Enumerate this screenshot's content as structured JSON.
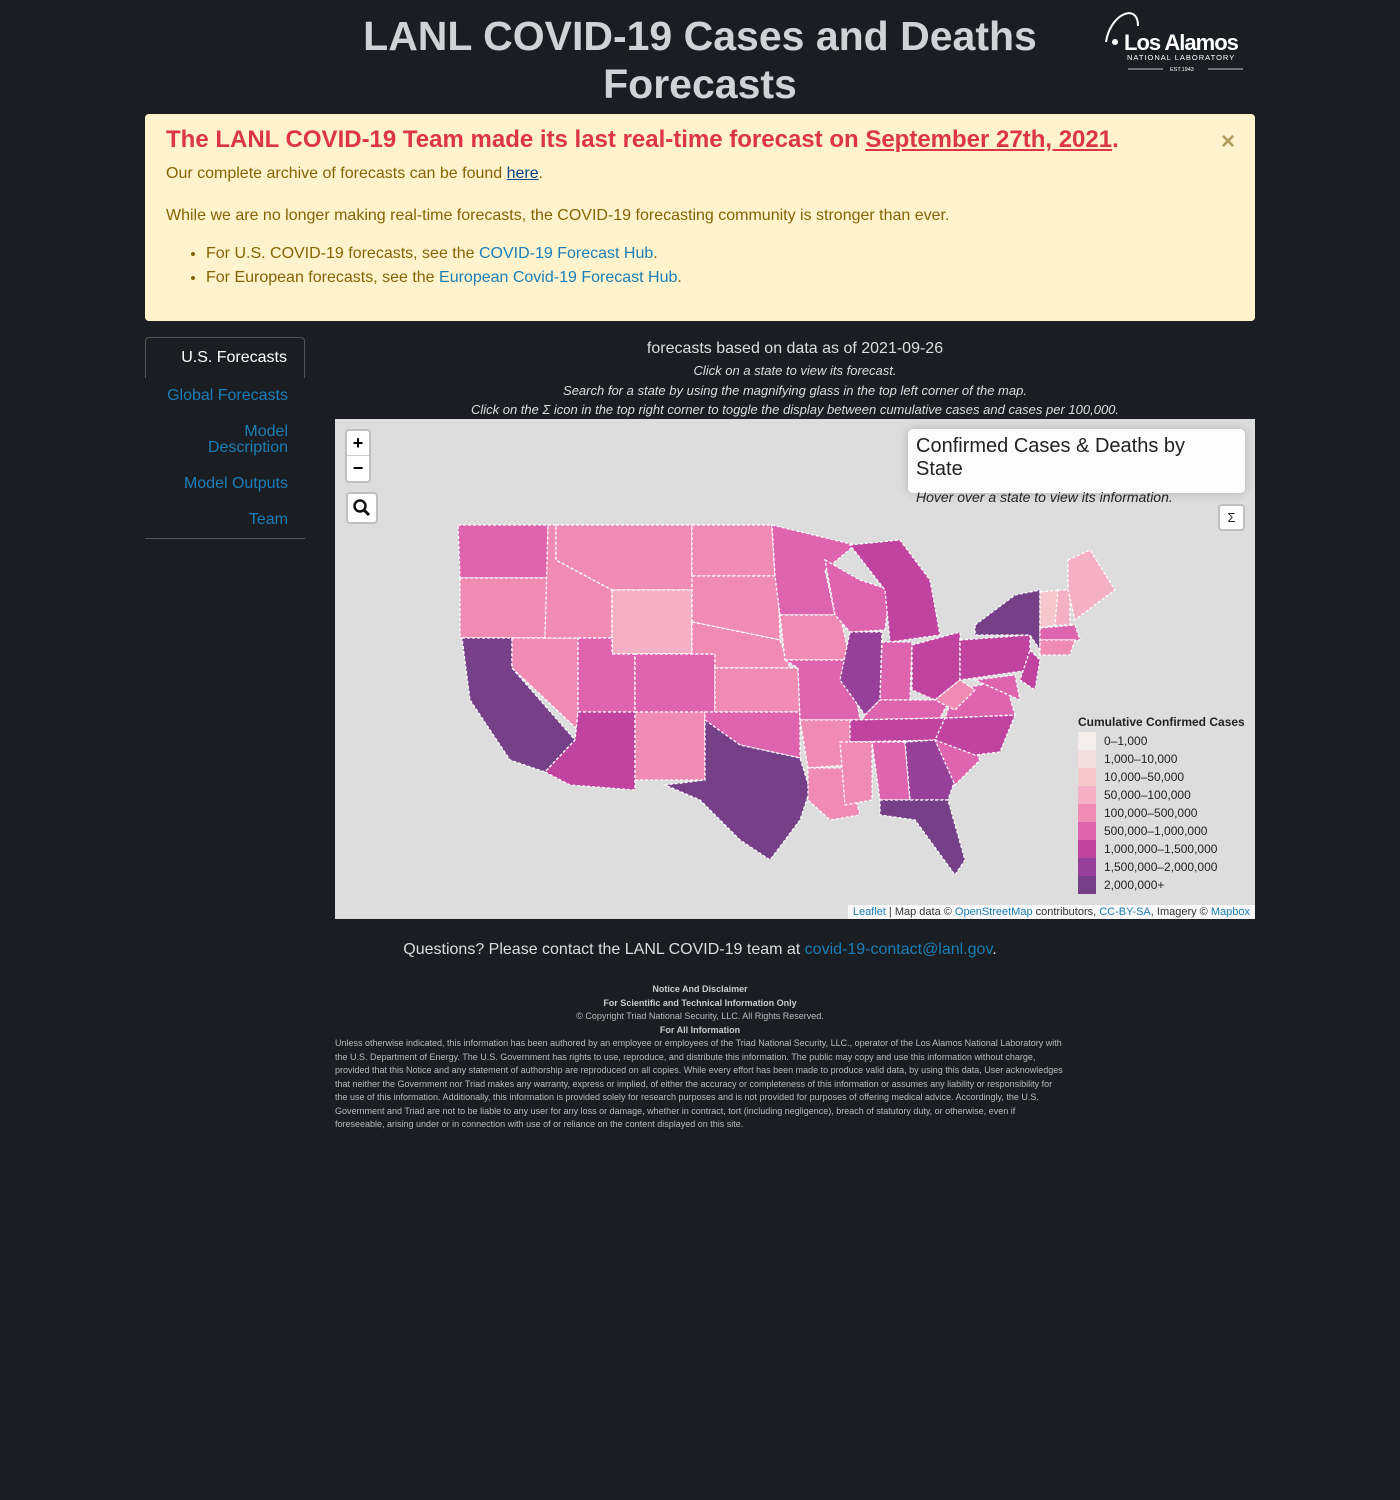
{
  "header": {
    "title": "LANL COVID-19 Cases and Deaths Forecasts",
    "logo_text": "Los Alamos",
    "logo_sub": "NATIONAL LABORATORY",
    "logo_est": "EST.1943"
  },
  "alert": {
    "heading_pre": "The LANL COVID-19 Team made its last real-time forecast on ",
    "heading_date": "September 27th, 2021",
    "heading_post": ".",
    "archive_pre": "Our complete archive of forecasts can be found ",
    "archive_link": "here",
    "archive_post": ".",
    "community": "While we are no longer making real-time forecasts, the COVID-19 forecasting community is stronger than ever.",
    "items": [
      {
        "pre": "For U.S. COVID-19 forecasts, see the ",
        "link": "COVID-19 Forecast Hub",
        "post": "."
      },
      {
        "pre": "For European forecasts, see the ",
        "link": "European Covid-19 Forecast Hub",
        "post": "."
      }
    ],
    "close": "×"
  },
  "nav": {
    "items": [
      {
        "label": "U.S. Forecasts"
      },
      {
        "label": "Global Forecasts"
      },
      {
        "label": "Model Description"
      },
      {
        "label": "Model Outputs"
      },
      {
        "label": "Team"
      }
    ]
  },
  "info": {
    "asof": "forecasts based on data as of 2021-09-26",
    "lines": [
      "Click on a state to view its forecast.",
      "Search for a state by using the magnifying glass in the top left corner of the map.",
      "Click on the Σ icon in the top right corner to toggle the display between cumulative cases and cases per 100,000."
    ]
  },
  "map": {
    "zoom_in": "+",
    "zoom_out": "−",
    "sigma": "Σ",
    "infobox_title": "Confirmed Cases & Deaths by State",
    "infobox_hint": "Hover over a state to view its information.",
    "legend": {
      "title": "Cumulative Confirmed Cases",
      "bins": [
        {
          "label": "0–1,000",
          "color": "#f4efec"
        },
        {
          "label": "1,000–10,000",
          "color": "#f4dfe0"
        },
        {
          "label": "10,000–50,000",
          "color": "#f5c9cc"
        },
        {
          "label": "50,000–100,000",
          "color": "#f4b0c4"
        },
        {
          "label": "100,000–500,000",
          "color": "#f08cb4"
        },
        {
          "label": "500,000–1,000,000",
          "color": "#de64b0"
        },
        {
          "label": "1,000,000–1,500,000",
          "color": "#c043a0"
        },
        {
          "label": "1,500,000–2,000,000",
          "color": "#974099"
        },
        {
          "label": "2,000,000+",
          "color": "#764089"
        }
      ]
    },
    "attribution": {
      "leaflet": "Leaflet",
      "mid1": " | Map data © ",
      "osm": "OpenStreetMap",
      "mid2": " contributors, ",
      "ccbysa": "CC-BY-SA",
      "mid3": ", Imagery © ",
      "mapbox": "Mapbox"
    }
  },
  "contact": {
    "pre": "Questions? Please contact the LANL COVID-19 team at ",
    "email": "covid-19-contact@lanl.gov",
    "post": "."
  },
  "disclaimer": {
    "h1": "Notice And Disclaimer",
    "h2": "For Scientific and Technical Information Only",
    "copyright": "© Copyright Triad National Security, LLC. All Rights Reserved.",
    "h3": "For All Information",
    "body": "Unless otherwise indicated, this information has been authored by an employee or employees of the Triad National Security, LLC., operator of the Los Alamos National Laboratory with the U.S. Department of Energy. The U.S. Government has rights to use, reproduce, and distribute this information. The public may copy and use this information without charge, provided that this Notice and any statement of authorship are reproduced on all copies. While every effort has been made to produce valid data, by using this data, User acknowledges that neither the Government nor Triad makes any warranty, express or implied, of either the accuracy or completeness of this information or assumes any liability or responsibility for the use of this information. Additionally, this information is provided solely for research purposes and is not provided for purposes of offering medical advice. Accordingly, the U.S. Government and Triad are not to be liable to any user for any loss or damage, whether in contract, tort (including negligence), breach of statutory duty, or otherwise, even if foreseeable, arising under or in connection with use of or reliance on the content displayed on this site."
  }
}
